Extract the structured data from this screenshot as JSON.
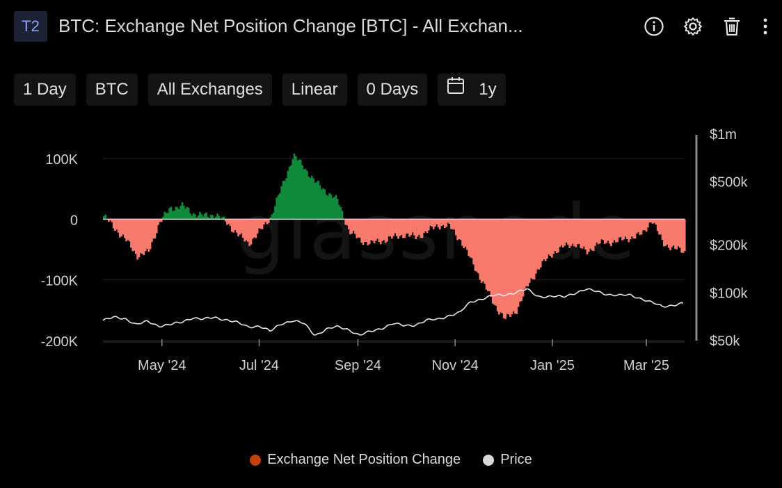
{
  "header": {
    "badge": "T2",
    "title": "BTC: Exchange Net Position Change [BTC] - All Exchan...",
    "icons": [
      "info-icon",
      "gear-icon",
      "trash-icon",
      "more-vertical-icon"
    ]
  },
  "toolbar": {
    "resolution": "1 Day",
    "asset": "BTC",
    "exchange": "All Exchanges",
    "scale": "Linear",
    "ma": "0 Days",
    "range": "1y"
  },
  "watermark": "glassnode",
  "legend": [
    {
      "label": "Exchange Net Position Change",
      "color": "#c2410c"
    },
    {
      "label": "Price",
      "color": "#d9d9d9"
    }
  ],
  "colors": {
    "positive": "#0f8a3a",
    "negative": "#f87a6d",
    "price": "#e6e6e6",
    "grid": "#262626"
  },
  "chart_data": {
    "type": "area",
    "x_range": [
      "2024-03-25",
      "2025-03-25"
    ],
    "x_ticks": [
      {
        "date": "2024-05-01",
        "label": "May '24"
      },
      {
        "date": "2024-07-01",
        "label": "Jul '24"
      },
      {
        "date": "2024-09-01",
        "label": "Sep '24"
      },
      {
        "date": "2024-11-01",
        "label": "Nov '24"
      },
      {
        "date": "2025-01-01",
        "label": "Jan '25"
      },
      {
        "date": "2025-03-01",
        "label": "Mar '25"
      }
    ],
    "y_left": {
      "min": -200000,
      "max": 100000,
      "ticks": [
        100000,
        0,
        -100000,
        -200000
      ],
      "tick_labels": [
        "100K",
        "0",
        "-100K",
        "-200K"
      ]
    },
    "y_right": {
      "scale": "log",
      "min": 50000,
      "max": 1000000,
      "ticks": [
        1000000,
        500000,
        200000,
        100000,
        50000
      ],
      "tick_labels": [
        "$1m",
        "$500k",
        "$200k",
        "$100k",
        "$50k"
      ]
    },
    "grid": true,
    "legend_position": "bottom",
    "series": [
      {
        "name": "Exchange Net Position Change",
        "axis": "left",
        "points": [
          [
            "2024-03-25",
            5000
          ],
          [
            "2024-04-01",
            -15000
          ],
          [
            "2024-04-08",
            -35000
          ],
          [
            "2024-04-15",
            -60000
          ],
          [
            "2024-04-22",
            -55000
          ],
          [
            "2024-04-29",
            -5000
          ],
          [
            "2024-05-06",
            18000
          ],
          [
            "2024-05-13",
            22000
          ],
          [
            "2024-05-20",
            10000
          ],
          [
            "2024-05-27",
            5000
          ],
          [
            "2024-06-03",
            8000
          ],
          [
            "2024-06-10",
            -5000
          ],
          [
            "2024-06-17",
            -25000
          ],
          [
            "2024-06-24",
            -40000
          ],
          [
            "2024-07-01",
            -20000
          ],
          [
            "2024-07-08",
            5000
          ],
          [
            "2024-07-15",
            55000
          ],
          [
            "2024-07-22",
            105000
          ],
          [
            "2024-07-29",
            85000
          ],
          [
            "2024-08-05",
            60000
          ],
          [
            "2024-08-12",
            45000
          ],
          [
            "2024-08-19",
            30000
          ],
          [
            "2024-08-26",
            -20000
          ],
          [
            "2024-09-02",
            -35000
          ],
          [
            "2024-09-09",
            -40000
          ],
          [
            "2024-09-16",
            -35000
          ],
          [
            "2024-09-23",
            -30000
          ],
          [
            "2024-09-30",
            -25000
          ],
          [
            "2024-10-07",
            -30000
          ],
          [
            "2024-10-14",
            -20000
          ],
          [
            "2024-10-21",
            -10000
          ],
          [
            "2024-10-28",
            -12000
          ],
          [
            "2024-11-04",
            -35000
          ],
          [
            "2024-11-11",
            -70000
          ],
          [
            "2024-11-18",
            -105000
          ],
          [
            "2024-11-25",
            -140000
          ],
          [
            "2024-12-02",
            -165000
          ],
          [
            "2024-12-09",
            -150000
          ],
          [
            "2024-12-16",
            -110000
          ],
          [
            "2024-12-23",
            -80000
          ],
          [
            "2025-01-01",
            -55000
          ],
          [
            "2025-01-08",
            -45000
          ],
          [
            "2025-01-15",
            -40000
          ],
          [
            "2025-01-22",
            -55000
          ],
          [
            "2025-01-29",
            -40000
          ],
          [
            "2025-02-05",
            -38000
          ],
          [
            "2025-02-12",
            -35000
          ],
          [
            "2025-02-19",
            -30000
          ],
          [
            "2025-02-26",
            -25000
          ],
          [
            "2025-03-04",
            0
          ],
          [
            "2025-03-11",
            -40000
          ],
          [
            "2025-03-18",
            -48000
          ],
          [
            "2025-03-25",
            -55000
          ]
        ]
      },
      {
        "name": "Price",
        "axis": "right",
        "points": [
          [
            "2024-03-25",
            67000
          ],
          [
            "2024-04-01",
            70000
          ],
          [
            "2024-04-08",
            69000
          ],
          [
            "2024-04-15",
            63000
          ],
          [
            "2024-04-22",
            66000
          ],
          [
            "2024-04-29",
            62000
          ],
          [
            "2024-05-06",
            63000
          ],
          [
            "2024-05-13",
            65000
          ],
          [
            "2024-05-20",
            70000
          ],
          [
            "2024-05-27",
            68000
          ],
          [
            "2024-06-03",
            70000
          ],
          [
            "2024-06-10",
            68000
          ],
          [
            "2024-06-17",
            65000
          ],
          [
            "2024-06-24",
            61000
          ],
          [
            "2024-07-01",
            62000
          ],
          [
            "2024-07-08",
            57000
          ],
          [
            "2024-07-15",
            64000
          ],
          [
            "2024-07-22",
            67000
          ],
          [
            "2024-07-29",
            64000
          ],
          [
            "2024-08-05",
            54000
          ],
          [
            "2024-08-12",
            59000
          ],
          [
            "2024-08-19",
            61000
          ],
          [
            "2024-08-26",
            59000
          ],
          [
            "2024-09-02",
            54000
          ],
          [
            "2024-09-09",
            57000
          ],
          [
            "2024-09-16",
            60000
          ],
          [
            "2024-09-23",
            64000
          ],
          [
            "2024-09-30",
            62000
          ],
          [
            "2024-10-07",
            63000
          ],
          [
            "2024-10-14",
            67000
          ],
          [
            "2024-10-21",
            68000
          ],
          [
            "2024-10-28",
            72000
          ],
          [
            "2024-11-04",
            75000
          ],
          [
            "2024-11-11",
            88000
          ],
          [
            "2024-11-18",
            92000
          ],
          [
            "2024-11-25",
            96000
          ],
          [
            "2024-12-02",
            97000
          ],
          [
            "2024-12-09",
            101000
          ],
          [
            "2024-12-16",
            105000
          ],
          [
            "2024-12-23",
            95000
          ],
          [
            "2025-01-01",
            95000
          ],
          [
            "2025-01-08",
            94000
          ],
          [
            "2025-01-15",
            100000
          ],
          [
            "2025-01-22",
            105000
          ],
          [
            "2025-01-29",
            102000
          ],
          [
            "2025-02-05",
            98000
          ],
          [
            "2025-02-12",
            96000
          ],
          [
            "2025-02-19",
            97000
          ],
          [
            "2025-02-26",
            92000
          ],
          [
            "2025-03-04",
            87000
          ],
          [
            "2025-03-11",
            82000
          ],
          [
            "2025-03-18",
            84000
          ],
          [
            "2025-03-25",
            86000
          ]
        ]
      }
    ]
  }
}
